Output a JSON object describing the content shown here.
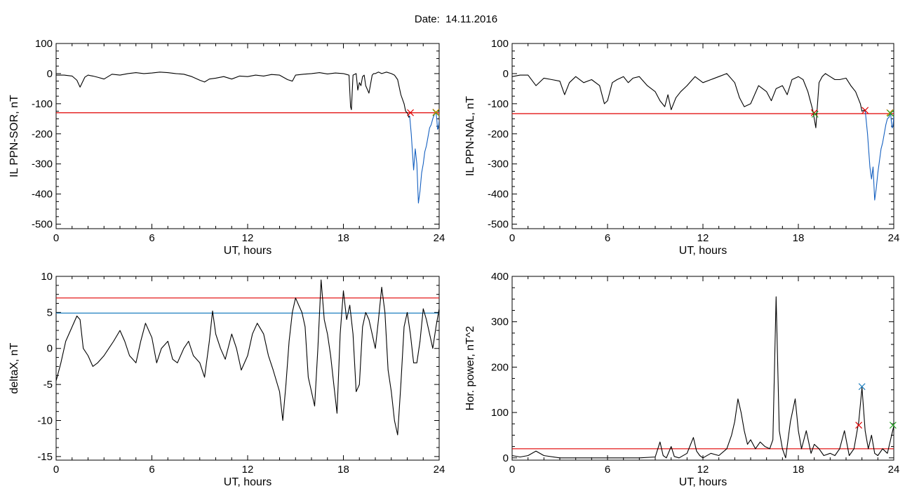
{
  "page": {
    "title": "Date:  14.11.2016"
  },
  "chart_data": [
    {
      "type": "line",
      "id": "sor",
      "xlabel": "UT, hours",
      "ylabel": "IL PPN-SOR, nT",
      "xlim": [
        0,
        24
      ],
      "ylim": [
        -515,
        100
      ],
      "xticks": [
        0,
        6,
        12,
        18,
        24
      ],
      "yticks": [
        -500,
        -400,
        -300,
        -200,
        -100,
        0,
        100
      ],
      "threshold_lines": [
        {
          "y": -130,
          "color": "#e00000"
        }
      ],
      "series": [
        {
          "color": "#000000",
          "x": [
            0,
            0.5,
            1.0,
            1.3,
            1.5,
            1.8,
            2.0,
            2.3,
            2.6,
            3.0,
            3.5,
            4.0,
            4.5,
            5.0,
            5.5,
            6.0,
            6.5,
            7.0,
            7.5,
            8.0,
            8.5,
            9.0,
            9.3,
            9.6,
            10.0,
            10.5,
            11.0,
            11.5,
            12.0,
            12.5,
            13.0,
            13.5,
            14.0,
            14.5,
            14.8,
            15.0,
            15.5,
            16.0,
            16.5,
            17.0,
            17.5,
            18.0,
            18.2,
            18.35,
            18.45,
            18.5,
            18.6,
            18.8,
            18.9,
            19.0,
            19.1,
            19.2,
            19.3,
            19.4,
            19.6,
            19.8,
            19.9,
            20.0,
            20.2,
            20.4,
            20.7,
            21.0,
            21.2,
            21.4,
            21.6,
            21.8,
            21.9,
            22.0,
            22.1,
            22.15
          ],
          "y": [
            -5,
            -5,
            -8,
            -22,
            -45,
            -12,
            -5,
            -8,
            -12,
            -18,
            -2,
            -5,
            0,
            3,
            0,
            2,
            5,
            3,
            0,
            -2,
            -10,
            -22,
            -28,
            -18,
            -15,
            -10,
            -18,
            -8,
            -10,
            -5,
            -8,
            -3,
            -5,
            -20,
            -25,
            -5,
            -2,
            0,
            3,
            -1,
            2,
            0,
            -3,
            -5,
            -110,
            -120,
            -5,
            0,
            -55,
            -30,
            -40,
            -10,
            -5,
            -40,
            -65,
            -5,
            0,
            0,
            5,
            0,
            5,
            0,
            -5,
            -20,
            -70,
            -100,
            -125,
            -130,
            -145,
            -140
          ]
        },
        {
          "color": "#1560c0",
          "x": [
            22.15,
            22.25,
            22.4,
            22.5,
            22.6,
            22.7,
            22.8,
            22.9,
            23.0,
            23.1,
            23.2,
            23.3,
            23.4,
            23.5,
            23.6,
            23.7,
            23.8,
            23.85,
            23.9,
            23.95,
            24.0
          ],
          "y": [
            -140,
            -200,
            -320,
            -250,
            -300,
            -430,
            -390,
            -330,
            -300,
            -260,
            -240,
            -210,
            -180,
            -170,
            -150,
            -135,
            -130,
            -150,
            -185,
            -180,
            -155
          ]
        }
      ],
      "markers": [
        {
          "x": 22.2,
          "y": -130,
          "color": "#e00000"
        },
        {
          "x": 23.8,
          "y": -130,
          "color": "#20a020"
        },
        {
          "x": 23.8,
          "y": -128,
          "color": "#d08000"
        }
      ]
    },
    {
      "type": "line",
      "id": "nal",
      "xlabel": "UT, hours",
      "ylabel": "IL PPN-NAL, nT",
      "xlim": [
        0,
        24
      ],
      "ylim": [
        -515,
        100
      ],
      "xticks": [
        0,
        6,
        12,
        18,
        24
      ],
      "yticks": [
        -500,
        -400,
        -300,
        -200,
        -100,
        0,
        100
      ],
      "threshold_lines": [
        {
          "y": -133,
          "color": "#e00000"
        }
      ],
      "series": [
        {
          "color": "#000000",
          "x": [
            0,
            0.5,
            1.0,
            1.5,
            2.0,
            2.5,
            3.0,
            3.3,
            3.6,
            4.0,
            4.5,
            5.0,
            5.5,
            5.8,
            6.0,
            6.3,
            6.6,
            7.0,
            7.3,
            7.6,
            8.0,
            8.5,
            9.0,
            9.3,
            9.6,
            9.8,
            10.0,
            10.3,
            10.6,
            11.0,
            11.5,
            12.0,
            12.5,
            13.0,
            13.5,
            14.0,
            14.3,
            14.6,
            15.0,
            15.5,
            16.0,
            16.3,
            16.6,
            17.0,
            17.3,
            17.6,
            18.0,
            18.3,
            18.6,
            18.9,
            19.0,
            19.1,
            19.3,
            19.5,
            19.7,
            20.0,
            20.3,
            20.6,
            21.0,
            21.3,
            21.6,
            21.9,
            22.0,
            22.2
          ],
          "y": [
            -10,
            -5,
            -5,
            -40,
            -15,
            -20,
            -25,
            -70,
            -30,
            -10,
            -30,
            -20,
            -40,
            -100,
            -90,
            -30,
            -20,
            -10,
            -30,
            -15,
            -10,
            -40,
            -60,
            -90,
            -110,
            -70,
            -120,
            -80,
            -60,
            -40,
            -10,
            -30,
            -20,
            -10,
            0,
            -30,
            -80,
            -110,
            -100,
            -40,
            -60,
            -90,
            -50,
            -40,
            -70,
            -20,
            -10,
            -20,
            -60,
            -120,
            -150,
            -180,
            -30,
            -10,
            0,
            -10,
            -20,
            -20,
            -15,
            -40,
            -60,
            -100,
            -125,
            -120
          ]
        },
        {
          "color": "#1560c0",
          "x": [
            22.2,
            22.35,
            22.5,
            22.6,
            22.7,
            22.8,
            22.9,
            23.0,
            23.1,
            23.2,
            23.3,
            23.4,
            23.5,
            23.6,
            23.7,
            23.8,
            23.85,
            23.9,
            23.95,
            24.0
          ],
          "y": [
            -120,
            -200,
            -310,
            -350,
            -310,
            -420,
            -380,
            -330,
            -290,
            -250,
            -230,
            -200,
            -170,
            -150,
            -145,
            -130,
            -160,
            -180,
            -175,
            -140
          ]
        }
      ],
      "markers": [
        {
          "x": 19.0,
          "y": -130,
          "color": "#e00000"
        },
        {
          "x": 19.05,
          "y": -135,
          "color": "#20a020"
        },
        {
          "x": 22.2,
          "y": -122,
          "color": "#e00000"
        },
        {
          "x": 23.75,
          "y": -130,
          "color": "#d08000"
        },
        {
          "x": 23.8,
          "y": -132,
          "color": "#20a020"
        }
      ]
    },
    {
      "type": "line",
      "id": "deltax",
      "xlabel": "UT, hours",
      "ylabel": "deltaX, nT",
      "xlim": [
        0,
        24
      ],
      "ylim": [
        -15.5,
        10
      ],
      "xticks": [
        0,
        6,
        12,
        18,
        24
      ],
      "yticks": [
        -15,
        -10,
        -5,
        0,
        5,
        10
      ],
      "threshold_lines": [
        {
          "y": 7,
          "color": "#e00000"
        },
        {
          "y": 4.9,
          "color": "#2080c0"
        }
      ],
      "series": [
        {
          "color": "#000000",
          "x": [
            0,
            0.3,
            0.6,
            1.0,
            1.3,
            1.5,
            1.7,
            2.0,
            2.3,
            2.6,
            3.0,
            3.3,
            3.6,
            4.0,
            4.3,
            4.6,
            5.0,
            5.3,
            5.6,
            6.0,
            6.3,
            6.6,
            7.0,
            7.3,
            7.6,
            8.0,
            8.3,
            8.6,
            9.0,
            9.3,
            9.6,
            9.8,
            10.0,
            10.3,
            10.6,
            11.0,
            11.3,
            11.6,
            12.0,
            12.3,
            12.6,
            13.0,
            13.3,
            13.6,
            14.0,
            14.2,
            14.4,
            14.6,
            14.8,
            15.0,
            15.2,
            15.4,
            15.6,
            15.8,
            16.0,
            16.2,
            16.4,
            16.6,
            16.8,
            17.0,
            17.2,
            17.4,
            17.6,
            17.8,
            18.0,
            18.2,
            18.4,
            18.6,
            18.8,
            19.0,
            19.2,
            19.4,
            19.6,
            19.8,
            20.0,
            20.2,
            20.4,
            20.6,
            20.8,
            21.0,
            21.2,
            21.4,
            21.6,
            21.8,
            22.0,
            22.2,
            22.4,
            22.6,
            22.8,
            23.0,
            23.2,
            23.4,
            23.6,
            23.8,
            24.0
          ],
          "y": [
            -4.5,
            -2,
            1,
            3,
            4.5,
            4,
            0,
            -1,
            -2.5,
            -2,
            -1,
            0,
            1,
            2.5,
            1,
            -1,
            -2,
            1,
            3.5,
            1.5,
            -2,
            0,
            1,
            -1.5,
            -2,
            0,
            1,
            -1,
            -2,
            -4,
            1,
            5.2,
            2,
            0,
            -1.5,
            2,
            0,
            -3,
            -1,
            2,
            3.5,
            2,
            -1,
            -3,
            -6,
            -10,
            -5,
            1,
            5,
            7,
            6,
            5,
            3,
            -4,
            -6,
            -8,
            0,
            9.5,
            4,
            2,
            -1,
            -5,
            -9,
            2,
            8,
            4,
            6,
            2,
            -6,
            -5,
            3,
            5,
            4,
            2,
            0,
            4,
            8.5,
            5,
            -3,
            -6,
            -10,
            -12,
            -5,
            3,
            5,
            2,
            -2,
            -2,
            1,
            5.5,
            4,
            2,
            0,
            3,
            5.5
          ]
        }
      ],
      "markers": []
    },
    {
      "type": "line",
      "id": "power",
      "xlabel": "UT, hours",
      "ylabel": "Hor. power, nT^2",
      "xlim": [
        0,
        24
      ],
      "ylim": [
        -5,
        400
      ],
      "xticks": [
        0,
        6,
        12,
        18,
        24
      ],
      "yticks": [
        0,
        100,
        200,
        300,
        400
      ],
      "threshold_lines": [
        {
          "y": 20,
          "color": "#e00000"
        }
      ],
      "series": [
        {
          "color": "#000000",
          "x": [
            0,
            0.5,
            1.0,
            1.5,
            2.0,
            3.0,
            4.0,
            5.0,
            6.0,
            7.0,
            8.0,
            9.0,
            9.3,
            9.5,
            9.7,
            10.0,
            10.2,
            10.5,
            11.0,
            11.4,
            11.6,
            11.8,
            12.0,
            12.5,
            13.0,
            13.5,
            13.8,
            14.0,
            14.2,
            14.4,
            14.6,
            14.8,
            15.0,
            15.3,
            15.6,
            15.9,
            16.2,
            16.4,
            16.6,
            16.8,
            17.0,
            17.2,
            17.5,
            17.8,
            18.0,
            18.2,
            18.5,
            18.8,
            19.0,
            19.3,
            19.6,
            20.0,
            20.3,
            20.6,
            20.9,
            21.2,
            21.5,
            21.8,
            22.0,
            22.2,
            22.4,
            22.6,
            22.8,
            23.0,
            23.3,
            23.6,
            24.0
          ],
          "y": [
            5,
            2,
            5,
            15,
            5,
            0,
            0,
            0,
            0,
            0,
            0,
            2,
            35,
            5,
            0,
            25,
            3,
            0,
            10,
            45,
            15,
            5,
            0,
            10,
            5,
            20,
            50,
            80,
            130,
            100,
            60,
            30,
            40,
            20,
            35,
            25,
            20,
            40,
            355,
            60,
            20,
            0,
            80,
            130,
            60,
            20,
            60,
            10,
            30,
            20,
            5,
            10,
            5,
            20,
            60,
            5,
            20,
            80,
            155,
            60,
            20,
            50,
            10,
            5,
            20,
            10,
            70
          ]
        }
      ],
      "markers": [
        {
          "x": 21.8,
          "y": 72,
          "color": "#e00000"
        },
        {
          "x": 22.0,
          "y": 157,
          "color": "#2080c0"
        },
        {
          "x": 23.95,
          "y": 72,
          "color": "#20a020"
        }
      ]
    }
  ]
}
